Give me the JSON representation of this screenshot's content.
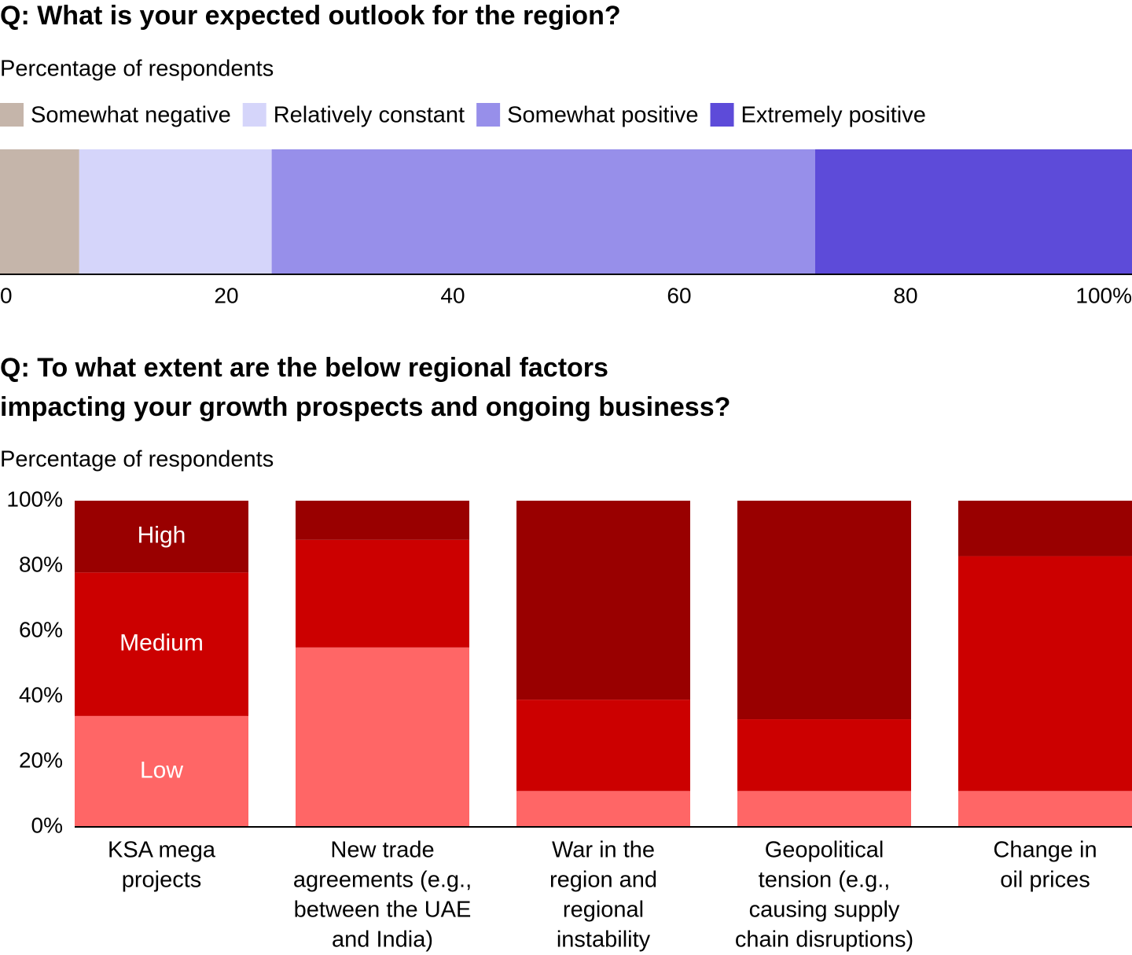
{
  "chart_data": [
    {
      "type": "hbar-stacked",
      "title": "Q: What is your expected outlook for the region?",
      "subtitle": "Percentage of respondents",
      "series": [
        {
          "name": "Somewhat negative",
          "color": "#c5b5aa",
          "values": [
            7
          ]
        },
        {
          "name": "Relatively constant",
          "color": "#d5d5fa",
          "values": [
            17
          ]
        },
        {
          "name": "Somewhat positive",
          "color": "#978fea",
          "values": [
            48
          ]
        },
        {
          "name": "Extremely positive",
          "color": "#5d4bd9",
          "values": [
            28
          ]
        }
      ],
      "xlim": [
        0,
        100
      ],
      "xticks": [
        0,
        20,
        40,
        60,
        80,
        {
          "value": 100,
          "label": "100%"
        }
      ]
    },
    {
      "type": "bar-stacked",
      "title": [
        "Q: To what extent are the below regional factors",
        "impacting your growth prospects and ongoing business?"
      ],
      "subtitle": "Percentage of respondents",
      "categories": [
        [
          "KSA mega",
          "projects"
        ],
        [
          "New trade",
          "agreements (e.g.,",
          "between the UAE",
          "and India)"
        ],
        [
          "War in the",
          "region and",
          "regional",
          "instability"
        ],
        [
          "Geopolitical",
          "tension (e.g.,",
          "causing supply",
          "chain disruptions)"
        ],
        [
          "Change in",
          "oil prices"
        ]
      ],
      "series": [
        {
          "name": "Low",
          "color": "#ff6666",
          "values": [
            34,
            55,
            11,
            11,
            11
          ]
        },
        {
          "name": "Medium",
          "color": "#cc0000",
          "values": [
            44,
            33,
            28,
            22,
            72
          ]
        },
        {
          "name": "High",
          "color": "#990000",
          "values": [
            22,
            12,
            61,
            67,
            17
          ]
        }
      ],
      "ylim": [
        0,
        100
      ],
      "yticks": [
        {
          "value": 0,
          "label": "0%"
        },
        {
          "value": 20,
          "label": "20%"
        },
        {
          "value": 40,
          "label": "40%"
        },
        {
          "value": 60,
          "label": "60%"
        },
        {
          "value": 80,
          "label": "80%"
        },
        {
          "value": 100,
          "label": "100%"
        }
      ]
    }
  ]
}
